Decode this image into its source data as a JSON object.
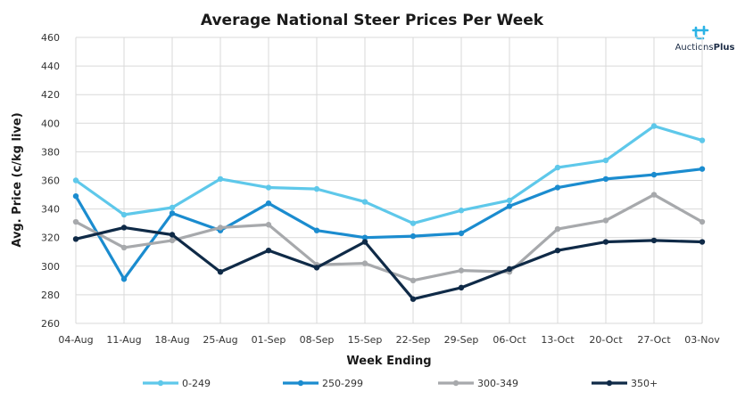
{
  "chart_data": {
    "type": "line",
    "title": "Average National Steer Prices Per Week",
    "xlabel": "Week Ending",
    "ylabel": "Avg. Price (c/kg live)",
    "ylim": [
      260,
      460
    ],
    "yticks": [
      260,
      280,
      300,
      320,
      340,
      360,
      380,
      400,
      420,
      440,
      460
    ],
    "grid": true,
    "legend_position": "bottom",
    "categories": [
      "04-Aug",
      "11-Aug",
      "18-Aug",
      "25-Aug",
      "01-Sep",
      "08-Sep",
      "15-Sep",
      "22-Sep",
      "29-Sep",
      "06-Oct",
      "13-Oct",
      "20-Oct",
      "27-Oct",
      "03-Nov"
    ],
    "series": [
      {
        "name": "0-249",
        "color": "#5ec8ea",
        "values": [
          360,
          336,
          341,
          361,
          355,
          354,
          345,
          330,
          339,
          346,
          369,
          374,
          398,
          388
        ]
      },
      {
        "name": "250-299",
        "color": "#1b8ccf",
        "values": [
          349,
          291,
          337,
          325,
          344,
          325,
          320,
          321,
          323,
          342,
          355,
          361,
          364,
          368
        ]
      },
      {
        "name": "300-349",
        "color": "#a7a9ac",
        "values": [
          331,
          313,
          318,
          327,
          329,
          301,
          302,
          290,
          297,
          296,
          326,
          332,
          350,
          331
        ]
      },
      {
        "name": "350+",
        "color": "#0f2a47",
        "values": [
          319,
          327,
          322,
          296,
          311,
          299,
          317,
          277,
          285,
          298,
          311,
          317,
          318,
          317
        ]
      }
    ]
  },
  "logo": {
    "name_regular": "Auctions",
    "name_bold": "Plus",
    "brand_color": "#2bb3e6"
  }
}
